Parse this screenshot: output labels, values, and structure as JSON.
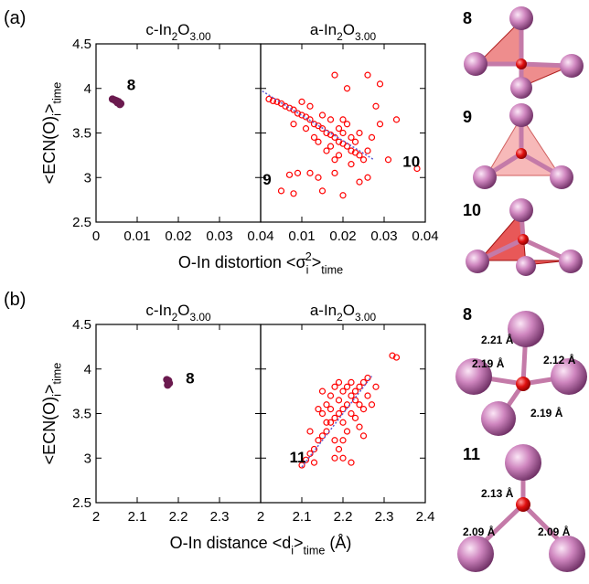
{
  "panel_labels": [
    "(a)",
    "(b)"
  ],
  "chart_data": [
    {
      "type": "scatter",
      "title": [
        "c-In",
        "2",
        "O",
        "3.00"
      ],
      "ylabel": [
        "<ECN(O)",
        "i",
        ">",
        "time"
      ],
      "xlabel": [
        "O-In distortion <σ",
        "i",
        "2",
        ">",
        "time"
      ],
      "xlim": [
        0,
        0.04
      ],
      "xticks": [
        0,
        0.01,
        0.02,
        0.03,
        0.04
      ],
      "ylim": [
        2.5,
        4.5
      ],
      "yticks": [
        2.5,
        3,
        3.5,
        4,
        4.5
      ],
      "ytick_labels": true,
      "series": [
        {
          "color": "#6b1a4f",
          "filled": true,
          "x": [
            0.004,
            0.0045,
            0.005,
            0.0055,
            0.006,
            0.0048,
            0.0052,
            0.0058
          ],
          "y": [
            3.88,
            3.87,
            3.86,
            3.85,
            3.83,
            3.86,
            3.84,
            3.82
          ]
        }
      ],
      "annotations": [
        "8"
      ]
    },
    {
      "type": "scatter",
      "title": [
        "a-In",
        "2",
        "O",
        "3.00"
      ],
      "xlim": [
        0,
        0.04
      ],
      "xticks": [
        0.01,
        0.02,
        0.03,
        0.04
      ],
      "ylim": [
        2.5,
        4.5
      ],
      "yticks": [
        2.5,
        3,
        3.5,
        4,
        4.5
      ],
      "ytick_labels": false,
      "series": [
        {
          "color": "#ff0000",
          "filled": false,
          "x": [
            0.002,
            0.003,
            0.004,
            0.005,
            0.006,
            0.007,
            0.008,
            0.009,
            0.01,
            0.011,
            0.012,
            0.013,
            0.014,
            0.015,
            0.016,
            0.017,
            0.018,
            0.019,
            0.02,
            0.021,
            0.022,
            0.023,
            0.024,
            0.025,
            0.008,
            0.01,
            0.012,
            0.014,
            0.015,
            0.016,
            0.017,
            0.018,
            0.019,
            0.02,
            0.021,
            0.022,
            0.023,
            0.024,
            0.019,
            0.017,
            0.013,
            0.011,
            0.02,
            0.026,
            0.027,
            0.022,
            0.018,
            0.018,
            0.026,
            0.029,
            0.021,
            0.033,
            0.038,
            0.005,
            0.008,
            0.012,
            0.015,
            0.02,
            0.024,
            0.009,
            0.007,
            0.029,
            0.031,
            0.014,
            0.026,
            0.028
          ],
          "y": [
            3.88,
            3.86,
            3.85,
            3.83,
            3.8,
            3.78,
            3.76,
            3.72,
            3.7,
            3.68,
            3.65,
            3.6,
            3.58,
            3.55,
            3.5,
            3.48,
            3.45,
            3.4,
            3.38,
            3.35,
            3.3,
            3.28,
            3.25,
            3.2,
            3.6,
            3.85,
            3.8,
            3.4,
            3.7,
            3.3,
            3.65,
            3.2,
            3.55,
            3.5,
            3.6,
            3.45,
            3.4,
            3.5,
            3.25,
            3.35,
            3.45,
            3.55,
            3.65,
            3.3,
            3.45,
            3.15,
            3.05,
            4.15,
            4.15,
            4.05,
            4.0,
            3.65,
            3.1,
            2.85,
            2.82,
            3.05,
            2.85,
            2.8,
            2.95,
            3.05,
            3.03,
            3.6,
            3.2,
            3.0,
            3.0,
            3.8
          ]
        }
      ],
      "fit": {
        "color": "#5b5bd6",
        "x": [
          0.0004,
          0.0275
        ],
        "y": [
          3.97,
          3.2
        ]
      },
      "annotations": [
        "9",
        "10"
      ]
    },
    {
      "type": "scatter",
      "title": [
        "c-In",
        "2",
        "O",
        "3.00"
      ],
      "ylabel": [
        "<ECN(O)",
        "i",
        ">",
        "time"
      ],
      "xlabel": [
        "O-In distance <d",
        "i",
        ">",
        "time",
        " (Å)"
      ],
      "xlim": [
        2,
        2.4
      ],
      "xticks": [
        2,
        2.1,
        2.2,
        2.3
      ],
      "ylim": [
        2.5,
        4.5
      ],
      "yticks": [
        2.5,
        3,
        3.5,
        4,
        4.5
      ],
      "ytick_labels": true,
      "series": [
        {
          "color": "#6b1a4f",
          "filled": true,
          "x": [
            2.172,
            2.175,
            2.178,
            2.174,
            2.176
          ],
          "y": [
            3.88,
            3.86,
            3.84,
            3.82,
            3.87
          ]
        }
      ],
      "annotations": [
        "8"
      ]
    },
    {
      "type": "scatter",
      "title": [
        "a-In",
        "2",
        "O",
        "3.00"
      ],
      "xlim": [
        2,
        2.4
      ],
      "xticks": [
        2,
        2.1,
        2.2,
        2.3,
        2.4
      ],
      "ylim": [
        2.5,
        4.5
      ],
      "yticks": [
        2.5,
        3,
        3.5,
        4,
        4.5
      ],
      "ytick_labels": false,
      "series": [
        {
          "color": "#ff0000",
          "filled": false,
          "x": [
            2.1,
            2.11,
            2.12,
            2.13,
            2.14,
            2.15,
            2.16,
            2.17,
            2.18,
            2.19,
            2.2,
            2.21,
            2.22,
            2.23,
            2.24,
            2.25,
            2.26,
            2.15,
            2.16,
            2.17,
            2.18,
            2.19,
            2.2,
            2.21,
            2.22,
            2.23,
            2.24,
            2.25,
            2.18,
            2.19,
            2.2,
            2.17,
            2.21,
            2.22,
            2.23,
            2.2,
            2.19,
            2.16,
            2.14,
            2.26,
            2.27,
            2.24,
            2.2,
            2.22,
            2.13,
            2.18,
            2.32,
            2.33,
            2.15,
            2.25,
            2.28,
            2.12
          ],
          "y": [
            2.92,
            2.98,
            3.05,
            3.1,
            3.2,
            3.25,
            3.3,
            3.4,
            3.45,
            3.5,
            3.55,
            3.6,
            3.7,
            3.75,
            3.8,
            3.85,
            3.9,
            3.5,
            3.6,
            3.7,
            3.8,
            3.85,
            3.4,
            3.3,
            3.5,
            3.45,
            3.6,
            3.55,
            3.2,
            3.1,
            3.2,
            3.55,
            3.8,
            3.85,
            3.65,
            3.75,
            3.65,
            3.4,
            3.55,
            3.7,
            3.6,
            3.35,
            3.0,
            2.95,
            2.95,
            3.0,
            4.15,
            4.13,
            3.75,
            3.25,
            3.8,
            3.3
          ]
        }
      ],
      "fit": {
        "color": "#5b5bd6",
        "x": [
          2.1,
          2.27
        ],
        "y": [
          2.9,
          3.92
        ]
      },
      "annotations": [
        "11"
      ]
    }
  ],
  "structures": [
    {
      "label": "8"
    },
    {
      "label": "9"
    },
    {
      "label": "10"
    },
    {
      "label": "8",
      "bonds": [
        "2.21 Å",
        "2.19 Å",
        "2.12 Å",
        "2.19 Å"
      ]
    },
    {
      "label": "11",
      "bonds": [
        "2.13 Å",
        "2.09 Å",
        "2.09 Å"
      ]
    }
  ]
}
